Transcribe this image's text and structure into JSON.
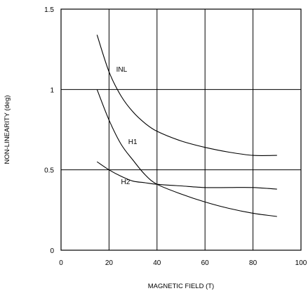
{
  "chart_data": {
    "type": "line",
    "title": "",
    "xlabel": "MAGNETIC FIELD (T)",
    "ylabel": "NON-LINEARITY (deg)",
    "xlim": [
      0,
      100
    ],
    "ylim": [
      0,
      1.5
    ],
    "x_ticks": [
      0,
      20,
      40,
      60,
      80,
      100
    ],
    "x_tick_labels": [
      "0",
      "20",
      "40",
      "60",
      "80",
      "100"
    ],
    "y_ticks": [
      0,
      0.5,
      1,
      1.5
    ],
    "y_tick_labels": [
      "0",
      "0.5",
      "1",
      "1.5"
    ],
    "grid": true,
    "legend": "none",
    "series": [
      {
        "name": "INL",
        "x": [
          15,
          20,
          25,
          30,
          35,
          40,
          50,
          60,
          70,
          80,
          90
        ],
        "y": [
          1.34,
          1.11,
          0.96,
          0.86,
          0.79,
          0.74,
          0.68,
          0.64,
          0.61,
          0.59,
          0.59
        ],
        "label_at": [
          23,
          1.11
        ]
      },
      {
        "name": "H1",
        "x": [
          15,
          20,
          25,
          30,
          35,
          40,
          50,
          60,
          70,
          80,
          90
        ],
        "y": [
          1.0,
          0.81,
          0.66,
          0.56,
          0.47,
          0.41,
          0.35,
          0.3,
          0.26,
          0.23,
          0.21
        ],
        "label_at": [
          28,
          0.66
        ]
      },
      {
        "name": "H2",
        "x": [
          15,
          20,
          25,
          30,
          35,
          40,
          50,
          60,
          70,
          80,
          90
        ],
        "y": [
          0.55,
          0.5,
          0.46,
          0.43,
          0.42,
          0.41,
          0.4,
          0.39,
          0.39,
          0.39,
          0.38
        ],
        "label_at": [
          25,
          0.41
        ]
      }
    ]
  }
}
